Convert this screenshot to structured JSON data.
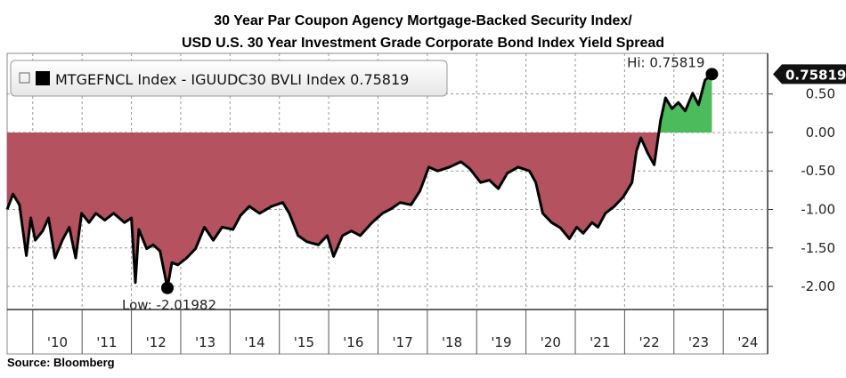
{
  "chart_data": {
    "type": "area-line",
    "title": [
      "30 Year Par Coupon Agency Mortgage-Backed Security Index/",
      "USD U.S. 30 Year Investment Grade Corporate Bond Index Yield Spread"
    ],
    "source": "Source: Bloomberg",
    "annotations": [
      "Hi: 0.75819",
      "Low: -2.01982"
    ],
    "last_value_label": "0.75819",
    "xlim": [
      2009.48,
      2024.9
    ],
    "ylim": [
      -2.3,
      0.97
    ],
    "xticks": [
      {
        "value": 2010,
        "label": "'10"
      },
      {
        "value": 2011,
        "label": "'11"
      },
      {
        "value": 2012,
        "label": "'12"
      },
      {
        "value": 2013,
        "label": "'13"
      },
      {
        "value": 2014,
        "label": "'14"
      },
      {
        "value": 2015,
        "label": "'15"
      },
      {
        "value": 2016,
        "label": "'16"
      },
      {
        "value": 2017,
        "label": "'17"
      },
      {
        "value": 2018,
        "label": "'18"
      },
      {
        "value": 2019,
        "label": "'19"
      },
      {
        "value": 2020,
        "label": "'20"
      },
      {
        "value": 2021,
        "label": "'21"
      },
      {
        "value": 2022,
        "label": "'22"
      },
      {
        "value": 2023,
        "label": "'23"
      },
      {
        "value": 2024,
        "label": "'24"
      }
    ],
    "yticks": [
      {
        "value": 0.5,
        "label": "0.50"
      },
      {
        "value": 0,
        "label": "0.00"
      },
      {
        "value": -0.5,
        "label": "-0.50"
      },
      {
        "value": -1,
        "label": "-1.00"
      },
      {
        "value": -1.5,
        "label": "-1.50"
      },
      {
        "value": -2,
        "label": "-2.00"
      }
    ],
    "grid": true,
    "x": [
      2009.48,
      2009.6,
      2009.73,
      2009.87,
      2009.96,
      2010.05,
      2010.2,
      2010.32,
      2010.45,
      2010.6,
      2010.74,
      2010.87,
      2010.99,
      2011.14,
      2011.28,
      2011.46,
      2011.64,
      2011.86,
      2012.0,
      2012.08,
      2012.15,
      2012.31,
      2012.44,
      2012.58,
      2012.73,
      2012.82,
      2012.94,
      2013.12,
      2013.3,
      2013.48,
      2013.66,
      2013.84,
      2014.06,
      2014.21,
      2014.39,
      2014.6,
      2014.84,
      2015.07,
      2015.2,
      2015.38,
      2015.56,
      2015.79,
      2015.97,
      2016.1,
      2016.28,
      2016.46,
      2016.64,
      2016.88,
      2017.09,
      2017.27,
      2017.45,
      2017.67,
      2017.85,
      2018.03,
      2018.21,
      2018.45,
      2018.68,
      2018.86,
      2019.08,
      2019.26,
      2019.44,
      2019.62,
      2019.84,
      2020.07,
      2020.2,
      2020.34,
      2020.52,
      2020.7,
      2020.88,
      2021.03,
      2021.16,
      2021.34,
      2021.46,
      2021.61,
      2021.79,
      2021.97,
      2022.15,
      2022.24,
      2022.33,
      2022.47,
      2022.6,
      2022.73,
      2022.83,
      2022.96,
      2023.09,
      2023.23,
      2023.38,
      2023.5,
      2023.63,
      2023.77
    ],
    "series": [
      {
        "name": "MTGEFNCL Index - IGUUDC30 BVLI Index 0.75819",
        "color": "#000000",
        "fill_negative": "#b5525f",
        "fill_positive": "#4cbb5c",
        "values": [
          -1.0,
          -0.8,
          -0.94,
          -1.6,
          -1.11,
          -1.4,
          -1.28,
          -1.11,
          -1.63,
          -1.4,
          -1.23,
          -1.63,
          -1.05,
          -1.17,
          -1.05,
          -1.14,
          -1.05,
          -1.17,
          -1.11,
          -1.95,
          -1.26,
          -1.51,
          -1.46,
          -1.54,
          -2.01982,
          -1.69,
          -1.72,
          -1.63,
          -1.51,
          -1.23,
          -1.4,
          -1.23,
          -1.26,
          -1.08,
          -0.96,
          -1.05,
          -0.96,
          -0.91,
          -1.05,
          -1.34,
          -1.42,
          -1.46,
          -1.34,
          -1.61,
          -1.34,
          -1.28,
          -1.34,
          -1.17,
          -1.05,
          -0.99,
          -0.91,
          -0.94,
          -0.76,
          -0.45,
          -0.5,
          -0.45,
          -0.38,
          -0.47,
          -0.65,
          -0.62,
          -0.73,
          -0.53,
          -0.45,
          -0.5,
          -0.65,
          -1.05,
          -1.17,
          -1.24,
          -1.38,
          -1.23,
          -1.31,
          -1.17,
          -1.23,
          -1.05,
          -0.96,
          -0.84,
          -0.65,
          -0.24,
          -0.07,
          -0.27,
          -0.42,
          0.16,
          0.45,
          0.31,
          0.39,
          0.28,
          0.51,
          0.36,
          0.68,
          0.75819
        ]
      }
    ]
  }
}
